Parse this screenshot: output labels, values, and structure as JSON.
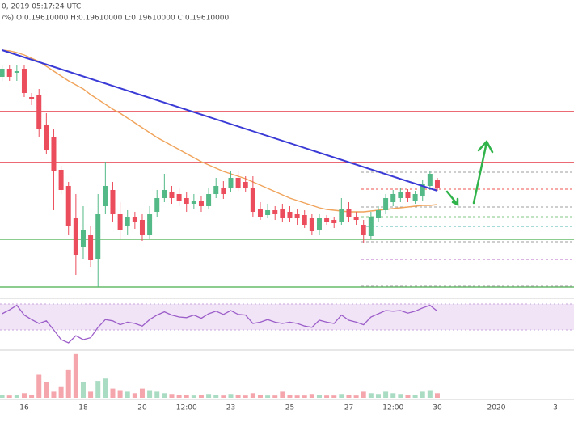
{
  "chart_data": {
    "type": "candlestick",
    "title": "0, 2019 05:17:24 UTC",
    "subtitle": "/%) O:0.19610000 H:0.19610000 L:0.19610000 C:0.19610000",
    "categories": [
      null,
      null,
      null,
      "16",
      null,
      null,
      null,
      null,
      null,
      null,
      null,
      "18",
      null,
      null,
      null,
      null,
      null,
      null,
      null,
      "20",
      null,
      null,
      null,
      null,
      null,
      "12:00",
      null,
      null,
      null,
      null,
      null,
      "23",
      null,
      null,
      null,
      null,
      null,
      null,
      null,
      "25",
      null,
      null,
      null,
      null,
      null,
      null,
      null,
      "27",
      null,
      null,
      null,
      null,
      null,
      "12:00",
      null,
      null,
      null,
      null,
      null,
      "30",
      null,
      null,
      null,
      null,
      null,
      null,
      null,
      "2020",
      null,
      null,
      null,
      null,
      null,
      null,
      null,
      "3",
      null,
      null
    ],
    "ylim": [
      0.183,
      0.219
    ],
    "candles": {
      "up_color": "#53b987",
      "down_color": "#eb4d5c",
      "open": [
        0.21,
        0.211,
        0.2105,
        0.211,
        0.2075,
        0.2077,
        0.204,
        0.2025,
        0.1985,
        0.1965,
        0.1925,
        0.189,
        0.1905,
        0.1875,
        0.194,
        0.196,
        0.193,
        0.1915,
        0.1927,
        0.1923,
        0.1905,
        0.1933,
        0.195,
        0.1958,
        0.1955,
        0.195,
        0.1943,
        0.1947,
        0.194,
        0.1955,
        0.1963,
        0.1963,
        0.1975,
        0.197,
        0.1963,
        0.1937,
        0.1929,
        0.1935,
        0.1937,
        0.1933,
        0.193,
        0.1929,
        0.1925,
        0.191,
        0.1925,
        0.1923,
        0.192,
        0.1937,
        0.1927,
        0.1917,
        0.1903,
        0.1925,
        0.1935,
        0.1945,
        0.195,
        0.1957,
        0.1947,
        0.1953,
        0.1965,
        0.1973,
        null,
        null,
        null,
        null,
        null,
        null,
        null,
        null,
        null,
        null,
        null,
        null,
        null,
        null,
        null,
        null,
        null,
        null
      ],
      "high": [
        0.2115,
        0.2115,
        0.2115,
        0.2115,
        0.208,
        0.2085,
        0.2055,
        0.2035,
        0.199,
        0.197,
        0.1955,
        0.194,
        0.1915,
        0.1955,
        0.1995,
        0.197,
        0.1945,
        0.1935,
        0.1933,
        0.193,
        0.194,
        0.196,
        0.198,
        0.1965,
        0.1963,
        0.1957,
        0.1955,
        0.1953,
        0.1963,
        0.1975,
        0.1971,
        0.1983,
        0.1983,
        0.1977,
        0.1977,
        0.1945,
        0.1943,
        0.194,
        0.1943,
        0.194,
        0.1937,
        0.1935,
        0.193,
        0.193,
        0.1929,
        0.1927,
        0.195,
        0.1945,
        0.1933,
        0.1923,
        0.1933,
        0.194,
        0.1955,
        0.196,
        0.1963,
        0.1961,
        0.1959,
        0.1973,
        0.1983,
        0.1975,
        null,
        null,
        null,
        null,
        null,
        null,
        null,
        null,
        null,
        null,
        null,
        null,
        null,
        null,
        null,
        null,
        null,
        null
      ],
      "low": [
        0.2095,
        0.2095,
        0.2095,
        0.2075,
        0.2065,
        0.2025,
        0.2005,
        0.1935,
        0.1955,
        0.1905,
        0.1855,
        0.1875,
        0.1865,
        0.184,
        0.193,
        0.192,
        0.19,
        0.1905,
        0.1912,
        0.1897,
        0.19,
        0.1927,
        0.1945,
        0.1943,
        0.194,
        0.1933,
        0.1937,
        0.1933,
        0.1937,
        0.195,
        0.1949,
        0.1957,
        0.1959,
        0.1957,
        0.1927,
        0.1923,
        0.1925,
        0.1923,
        0.192,
        0.192,
        0.1917,
        0.1913,
        0.1905,
        0.1905,
        0.1917,
        0.1913,
        0.1917,
        0.192,
        0.1917,
        0.1895,
        0.19,
        0.192,
        0.193,
        0.194,
        0.1945,
        0.1945,
        0.1943,
        0.1947,
        0.196,
        0.1959,
        null,
        null,
        null,
        null,
        null,
        null,
        null,
        null,
        null,
        null,
        null,
        null,
        null,
        null,
        null,
        null,
        null,
        null
      ],
      "close": [
        0.211,
        0.21,
        0.2107,
        0.208,
        0.2073,
        0.2035,
        0.201,
        0.1983,
        0.196,
        0.1915,
        0.188,
        0.191,
        0.1873,
        0.193,
        0.1965,
        0.193,
        0.191,
        0.1927,
        0.192,
        0.1905,
        0.193,
        0.195,
        0.196,
        0.195,
        0.1947,
        0.1943,
        0.1947,
        0.194,
        0.1955,
        0.1965,
        0.1955,
        0.1975,
        0.1963,
        0.1963,
        0.1933,
        0.1927,
        0.1935,
        0.193,
        0.1925,
        0.1925,
        0.1925,
        0.1917,
        0.1909,
        0.1925,
        0.1921,
        0.1919,
        0.1937,
        0.1927,
        0.1923,
        0.1905,
        0.1927,
        0.1935,
        0.195,
        0.1955,
        0.1957,
        0.195,
        0.1955,
        0.1967,
        0.198,
        0.1963,
        null,
        null,
        null,
        null,
        null,
        null,
        null,
        null,
        null,
        null,
        null,
        null,
        null,
        null,
        null,
        null,
        null,
        null
      ]
    },
    "ma": {
      "color": "#f0a35a",
      "values": [
        0.2133,
        0.2132,
        0.213,
        0.2127,
        0.2123,
        0.2119,
        0.2113,
        0.2107,
        0.2101,
        0.2095,
        0.209,
        0.2085,
        0.2078,
        0.2072,
        0.2066,
        0.206,
        0.2055,
        0.2049,
        0.2043,
        0.2037,
        0.2031,
        0.2025,
        0.202,
        0.2015,
        0.201,
        0.2005,
        0.2,
        0.1995,
        0.1991,
        0.1987,
        0.1983,
        0.198,
        0.1977,
        0.1974,
        0.197,
        0.1966,
        0.1962,
        0.1958,
        0.1954,
        0.195,
        0.1947,
        0.1944,
        0.1941,
        0.1938,
        0.1936,
        0.1935,
        0.1934,
        0.1933,
        0.1933,
        0.1933,
        0.1934,
        0.1935,
        0.1936,
        0.1937,
        0.1938,
        0.1939,
        0.194,
        0.1941,
        0.1941,
        0.1942,
        null,
        null,
        null,
        null,
        null,
        null,
        null,
        null,
        null,
        null,
        null,
        null,
        null,
        null,
        null,
        null,
        null,
        null
      ]
    },
    "trend_line": {
      "color": "#3a3ad6",
      "values": [
        0.2133,
        0.1959
      ]
    },
    "levels": [
      {
        "value": 0.2057,
        "color": "#e53946"
      },
      {
        "value": 0.1994,
        "color": "#e53946"
      },
      {
        "value": 0.1899,
        "color": "#66bb6a"
      },
      {
        "value": 0.184,
        "color": "#66bb6a"
      }
    ],
    "dashed_levels": [
      {
        "value": 0.1982,
        "color": "#9e9e9e"
      },
      {
        "value": 0.1961,
        "color": "#ef5350"
      },
      {
        "value": 0.1939,
        "color": "#9e9e9e"
      },
      {
        "value": 0.1927,
        "color": "#81c784"
      },
      {
        "value": 0.1915,
        "color": "#4db6ac"
      },
      {
        "value": 0.1896,
        "color": "#9e9e9e"
      },
      {
        "value": 0.1874,
        "color": "#ba68c8"
      },
      {
        "value": 0.1841,
        "color": "#9e9e9e"
      }
    ],
    "rsi": {
      "color": "#9c5ec9",
      "band_color": "#f1e4f7",
      "ylim": [
        0,
        100
      ],
      "band": [
        30,
        70
      ],
      "values": [
        55,
        61,
        68,
        53,
        46,
        40,
        44,
        30,
        15,
        10,
        21,
        15,
        18,
        34,
        46,
        44,
        38,
        42,
        40,
        36,
        46,
        53,
        58,
        53,
        50,
        49,
        53,
        48,
        55,
        59,
        54,
        60,
        54,
        53,
        40,
        42,
        46,
        42,
        40,
        42,
        40,
        36,
        34,
        45,
        42,
        40,
        53,
        45,
        42,
        38,
        50,
        55,
        60,
        59,
        60,
        56,
        59,
        64,
        68,
        59,
        null,
        null,
        null,
        null,
        null,
        null,
        null,
        null,
        null,
        null,
        null,
        null,
        null,
        null,
        null,
        null,
        null,
        null
      ]
    },
    "volume": {
      "ylim": [
        0,
        60
      ],
      "values": [
        4,
        3,
        4,
        6,
        4,
        30,
        20,
        8,
        15,
        37,
        57,
        20,
        8,
        22,
        25,
        12,
        10,
        8,
        6,
        12,
        10,
        8,
        6,
        5,
        4,
        4,
        3,
        4,
        5,
        4,
        3,
        5,
        4,
        3,
        6,
        4,
        3,
        3,
        8,
        4,
        3,
        3,
        5,
        4,
        3,
        3,
        5,
        4,
        3,
        8,
        6,
        5,
        8,
        6,
        5,
        4,
        4,
        8,
        10,
        6,
        null,
        null,
        null,
        null,
        null,
        null,
        null,
        null,
        null,
        null,
        null,
        null,
        null,
        null,
        null,
        null,
        null,
        null
      ]
    }
  }
}
